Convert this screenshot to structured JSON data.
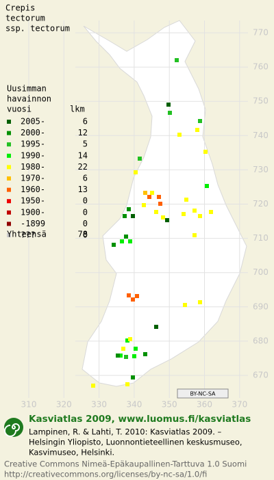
{
  "title": [
    "Crepis",
    "tectorum",
    "ssp. tectorum"
  ],
  "legend": {
    "heading": [
      "Uusimman",
      "havainnon"
    ],
    "col_year": "vuosi",
    "col_count": "lkm",
    "items": [
      {
        "label": "2005-",
        "count": 6,
        "color": "#005f00"
      },
      {
        "label": "2000-",
        "count": 12,
        "color": "#009000"
      },
      {
        "label": "1995-",
        "count": 5,
        "color": "#22c022"
      },
      {
        "label": "1990-",
        "count": 14,
        "color": "#00ee00"
      },
      {
        "label": "1980-",
        "count": 22,
        "color": "#ffff00"
      },
      {
        "label": "1970-",
        "count": 6,
        "color": "#ffc000"
      },
      {
        "label": "1960-",
        "count": 13,
        "color": "#ff6000"
      },
      {
        "label": "1950-",
        "count": 0,
        "color": "#ee0000"
      },
      {
        "label": "1900-",
        "count": 0,
        "color": "#c00000"
      },
      {
        "label": "-1899",
        "count": 0,
        "color": "#900000"
      },
      {
        "label": "???",
        "count": 0,
        "color": "#cccccc"
      }
    ],
    "total_label": "Yhteensä",
    "total": 78
  },
  "map": {
    "north_labels": [
      770,
      760,
      750,
      740,
      730,
      720,
      710,
      700,
      690,
      680,
      670
    ],
    "east_labels": [
      310,
      320,
      330,
      340,
      350,
      360,
      370
    ],
    "license_badge": "BY-NC-SA"
  },
  "footer": {
    "brand": "Kasviatlas 2009, www.luomus.fi/kasviatlas",
    "citation": [
      "Lampinen, R. & Lahti, T. 2010: Kasviatlas 2009. –",
      "Helsingin Yliopisto, Luonnontieteellinen keskusmuseo,",
      "Kasvimuseo, Helsinki."
    ],
    "license": [
      "Creative Commons Nimeä-Epäkaupallinen-Tarttuva 1.0 Suomi",
      "http://creativecommons.org/licenses/by-nc-sa/1.0/fi"
    ]
  }
}
